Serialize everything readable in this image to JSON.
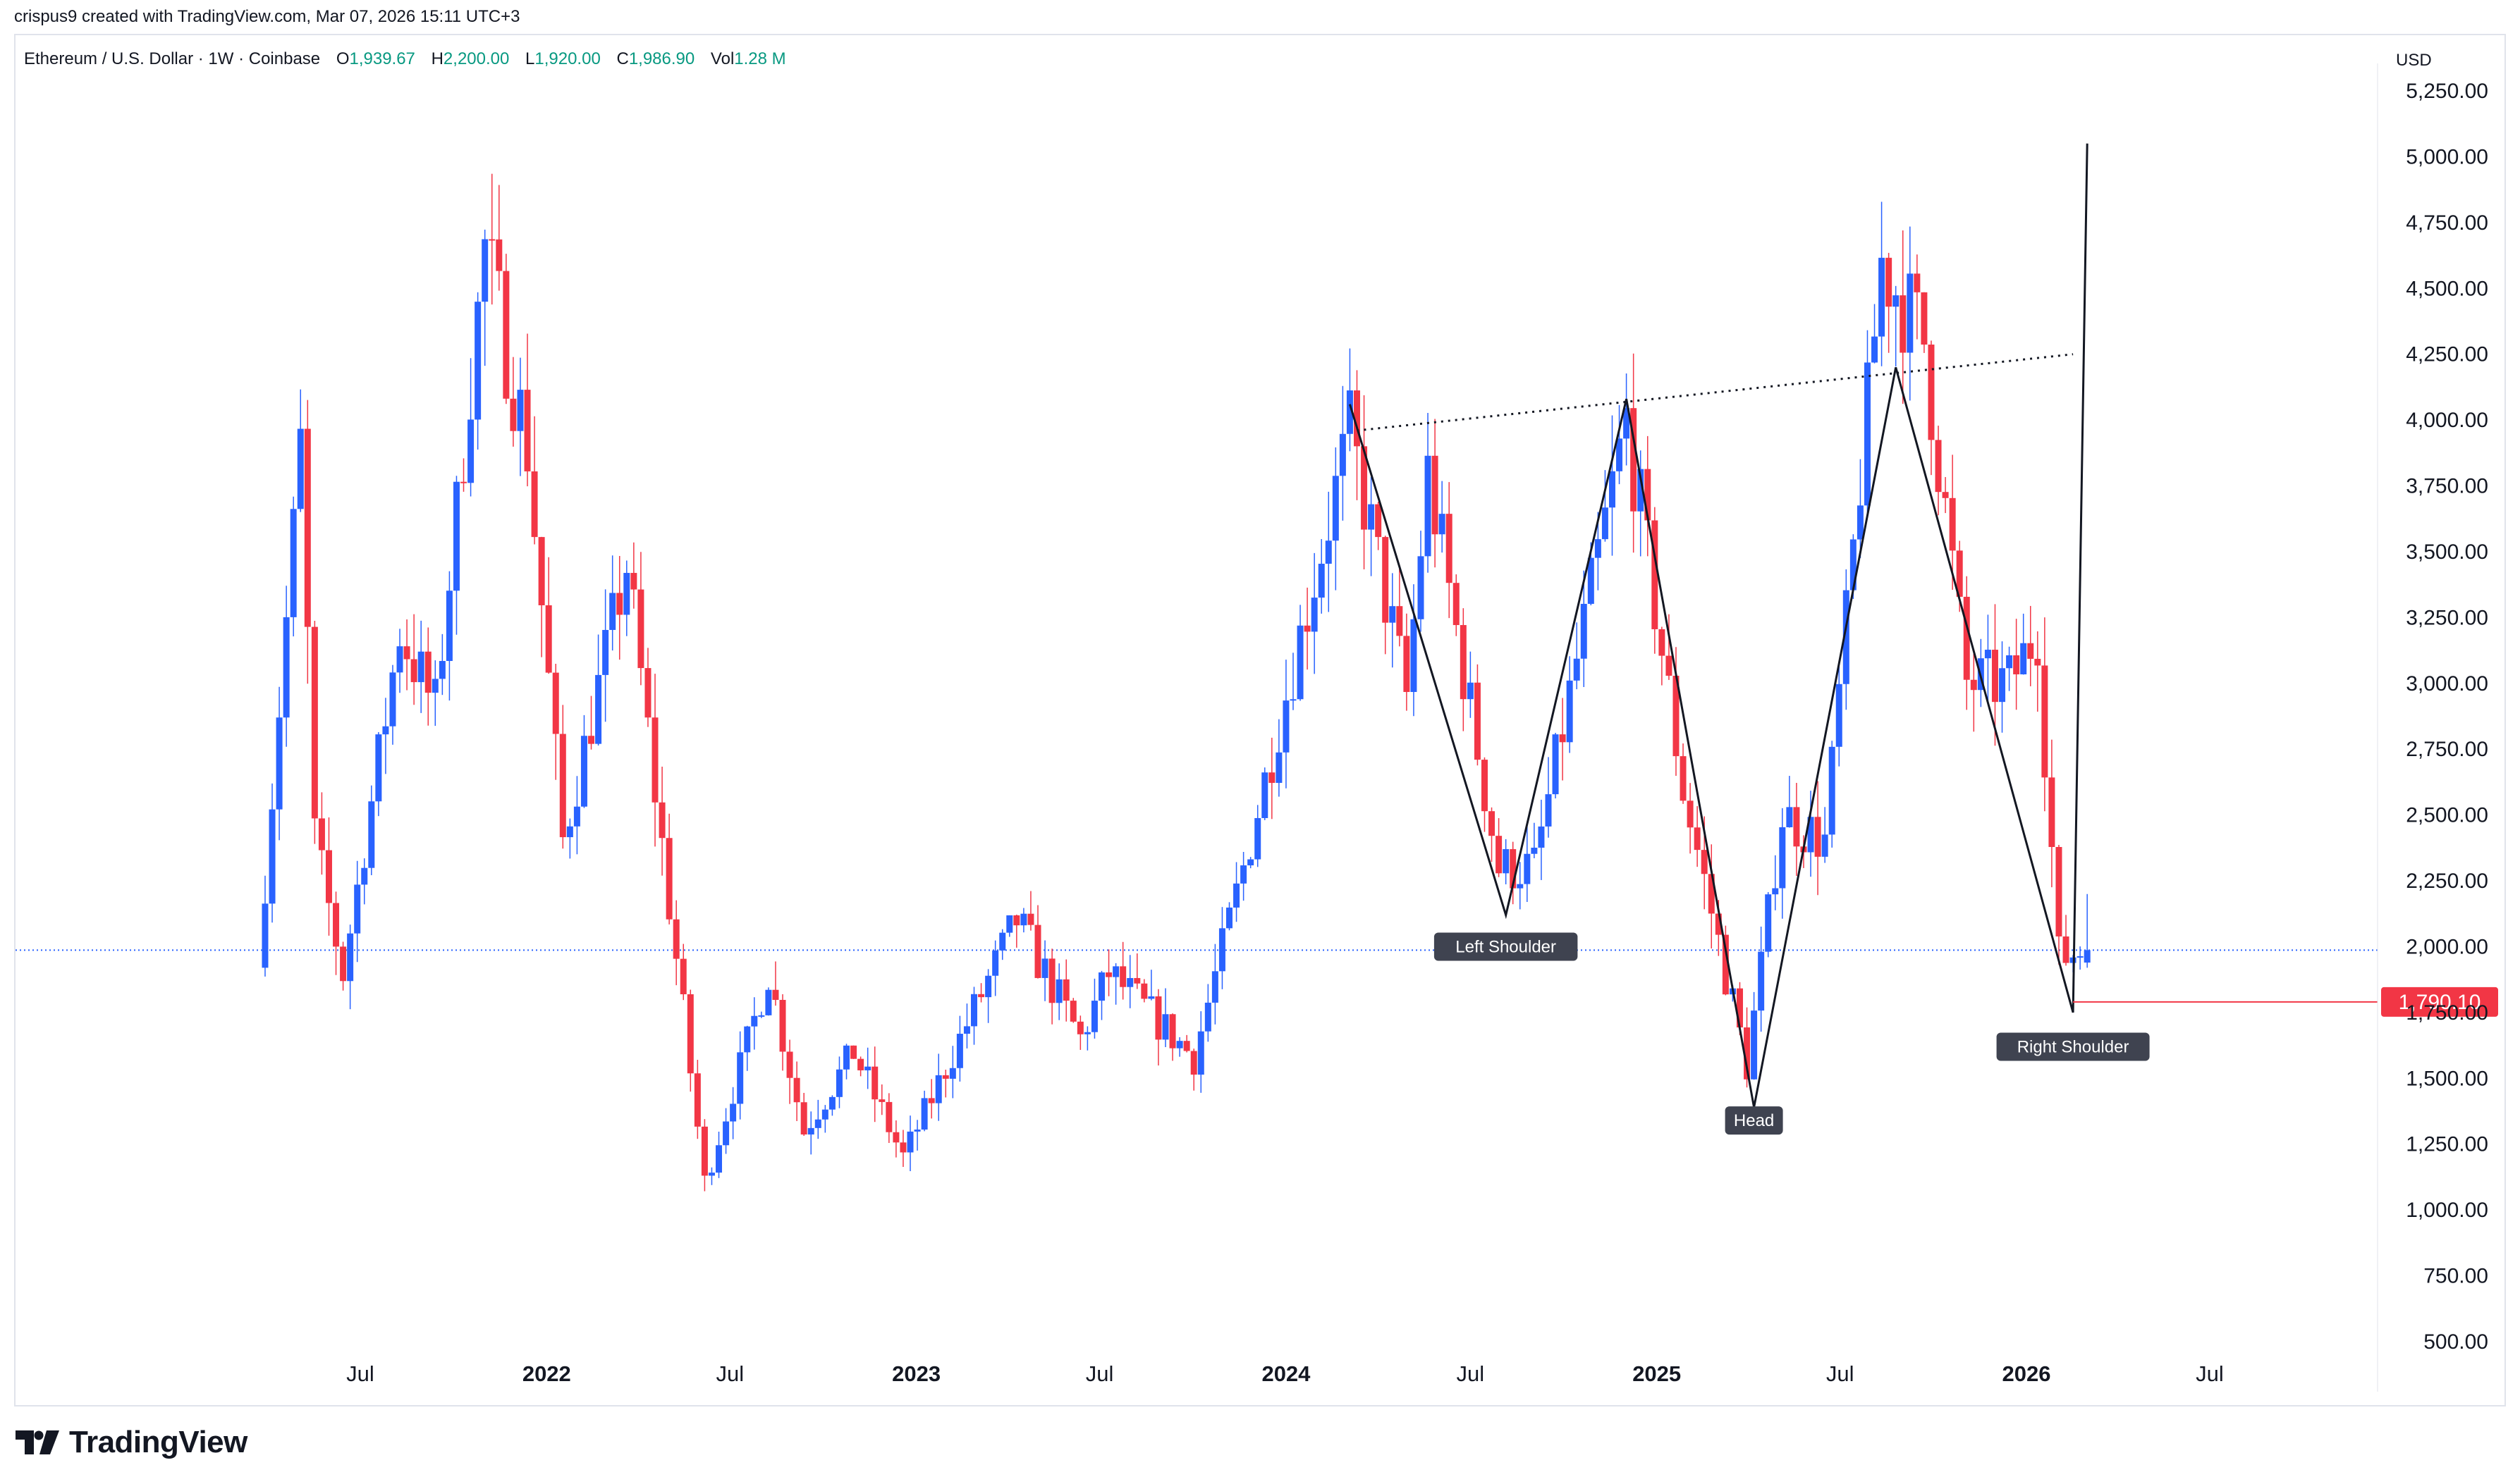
{
  "header": {
    "credit": "crispus9 created with TradingView.com, Mar 07, 2026 15:11 UTC+3"
  },
  "legend": {
    "symbol": "Ethereum / U.S. Dollar · 1W · Coinbase",
    "open_label": "O",
    "open": "1,939.67",
    "high_label": "H",
    "high": "2,200.00",
    "low_label": "L",
    "low": "1,920.00",
    "close_label": "C",
    "close": "1,986.90",
    "vol_label": "Vol",
    "vol": "1.28 M"
  },
  "axis": {
    "currency": "USD"
  },
  "footer": {
    "brand": "TradingView"
  },
  "colors": {
    "up": "#2962ff",
    "down": "#f23645",
    "line": "#131722",
    "price_line": "#2962ff",
    "marker": "#f23645",
    "label_bg": "#3f4350"
  },
  "chart_data": {
    "type": "candlestick",
    "interval": "1W",
    "y_axis": {
      "scale": "linear",
      "side": "right",
      "ticks": [
        500,
        750,
        1000,
        1250,
        1500,
        1750,
        2000,
        2250,
        2500,
        2750,
        3000,
        3250,
        3500,
        3750,
        4000,
        4250,
        4500,
        4750,
        5000,
        5250
      ],
      "tick_labels": [
        "500.00",
        "750.00",
        "1,000.00",
        "1,250.00",
        "1,500.00",
        "1,750.00",
        "2,000.00",
        "2,250.00",
        "2,500.00",
        "2,750.00",
        "3,000.00",
        "3,250.00",
        "3,500.00",
        "3,750.00",
        "4,000.00",
        "4,250.00",
        "4,500.00",
        "4,750.00",
        "5,000.00",
        "5,250.00"
      ]
    },
    "x_axis": {
      "ticks": [
        {
          "date": "2021-07-01",
          "label": "Jul",
          "bold": false
        },
        {
          "date": "2022-01-01",
          "label": "2022",
          "bold": true
        },
        {
          "date": "2022-07-01",
          "label": "Jul",
          "bold": false
        },
        {
          "date": "2023-01-01",
          "label": "2023",
          "bold": true
        },
        {
          "date": "2023-07-01",
          "label": "Jul",
          "bold": false
        },
        {
          "date": "2024-01-01",
          "label": "2024",
          "bold": true
        },
        {
          "date": "2024-07-01",
          "label": "Jul",
          "bold": false
        },
        {
          "date": "2025-01-01",
          "label": "2025",
          "bold": true
        },
        {
          "date": "2025-07-01",
          "label": "Jul",
          "bold": false
        },
        {
          "date": "2026-01-01",
          "label": "2026",
          "bold": true
        },
        {
          "date": "2026-07-01",
          "label": "Jul",
          "bold": false
        }
      ]
    },
    "price_anchors": [
      [
        "2021-03-29",
        1920
      ],
      [
        "2021-05-10",
        3900
      ],
      [
        "2021-05-24",
        2400
      ],
      [
        "2021-06-21",
        1900
      ],
      [
        "2021-08-16",
        3200
      ],
      [
        "2021-09-20",
        2900
      ],
      [
        "2021-11-08",
        4650
      ],
      [
        "2021-12-20",
        3900
      ],
      [
        "2022-01-24",
        2400
      ],
      [
        "2022-03-28",
        3450
      ],
      [
        "2022-06-13",
        1100
      ],
      [
        "2022-08-15",
        1900
      ],
      [
        "2022-09-19",
        1300
      ],
      [
        "2022-11-07",
        1600
      ],
      [
        "2022-12-26",
        1200
      ],
      [
        "2023-04-17",
        2100
      ],
      [
        "2023-06-19",
        1650
      ],
      [
        "2023-07-17",
        1900
      ],
      [
        "2023-10-09",
        1580
      ],
      [
        "2023-11-27",
        2300
      ],
      [
        "2024-03-11",
        3950
      ],
      [
        "2024-05-06",
        2950
      ],
      [
        "2024-05-27",
        3800
      ],
      [
        "2024-08-05",
        2300
      ],
      [
        "2024-09-09",
        2300
      ],
      [
        "2024-12-09",
        4000
      ],
      [
        "2025-02-03",
        2600
      ],
      [
        "2025-04-07",
        1550
      ],
      [
        "2025-05-12",
        2500
      ],
      [
        "2025-06-23",
        2400
      ],
      [
        "2025-08-18",
        4600
      ],
      [
        "2025-09-29",
        4300
      ],
      [
        "2025-11-10",
        3000
      ],
      [
        "2025-12-22",
        3000
      ],
      [
        "2026-01-19",
        3200
      ],
      [
        "2026-02-09",
        1950
      ],
      [
        "2026-03-02",
        1986.9
      ]
    ],
    "last_candle": {
      "date": "2026-03-02",
      "open": 1939.67,
      "high": 2200.0,
      "low": 1920.0,
      "close": 1986.9
    },
    "current_price_line": 1986.9,
    "marker_price": {
      "value": 1790.1,
      "label": "1,790.10",
      "from_date": "2026-02-16"
    },
    "trendlines": {
      "pattern_points": [
        {
          "date": "2024-03-04",
          "price": 4060
        },
        {
          "date": "2024-08-05",
          "price": 2120
        },
        {
          "date": "2024-12-02",
          "price": 4080
        },
        {
          "date": "2025-04-07",
          "price": 1390
        },
        {
          "date": "2025-08-25",
          "price": 4200
        },
        {
          "date": "2026-02-16",
          "price": 1750
        },
        {
          "date": "2026-03-02",
          "price": 5050
        }
      ],
      "neckline": [
        {
          "date": "2024-03-11",
          "price": 3960
        },
        {
          "date": "2026-02-16",
          "price": 4250
        }
      ]
    },
    "annotations": [
      {
        "text": "Left Shoulder",
        "date": "2024-08-05",
        "price": 2000
      },
      {
        "text": "Head",
        "date": "2025-04-07",
        "price": 1340
      },
      {
        "text": "Right Shoulder",
        "date": "2026-02-16",
        "price": 1620
      }
    ]
  }
}
